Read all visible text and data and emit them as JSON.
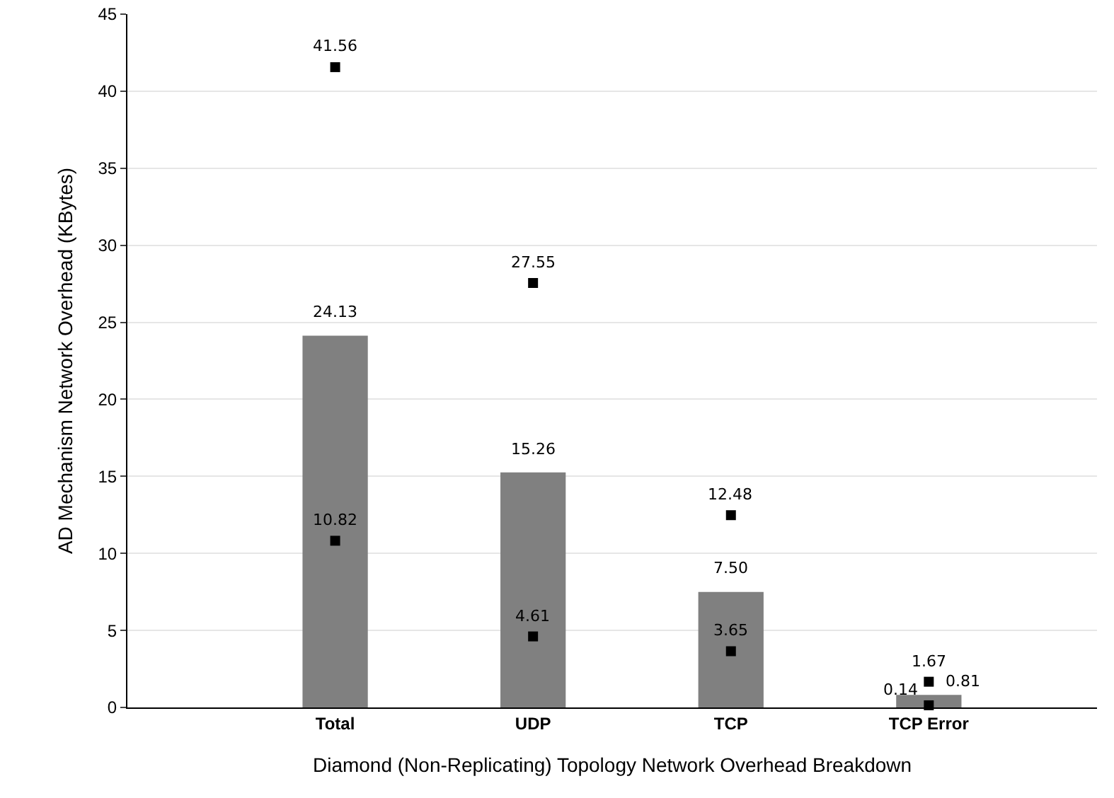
{
  "chart_data": {
    "type": "bar",
    "xlabel": "Diamond (Non-Replicating) Topology Network Overhead Breakdown",
    "ylabel": "AD Mechanism Network Overhead (KBytes)",
    "categories": [
      "Total",
      "UDP",
      "TCP",
      "TCP Error"
    ],
    "series": [
      {
        "type": "bar",
        "color": "#808080",
        "values": [
          24.13,
          15.26,
          7.5,
          0.81
        ],
        "value_labels": [
          "24.13",
          "15.26",
          "7.50",
          "0.81"
        ]
      },
      {
        "type": "scatter",
        "color": "#000000",
        "values": [
          41.56,
          27.55,
          12.48,
          1.67
        ],
        "value_labels": [
          "41.56",
          "27.55",
          "12.48",
          "1.67"
        ]
      },
      {
        "type": "scatter",
        "color": "#000000",
        "values": [
          10.82,
          4.61,
          3.65,
          0.14
        ],
        "value_labels": [
          "10.82",
          "4.61",
          "3.65",
          "0.14"
        ]
      }
    ],
    "ylim": [
      0,
      45
    ],
    "yticks": [
      0,
      5,
      10,
      15,
      20,
      25,
      30,
      35,
      40,
      45
    ],
    "grid": "y",
    "legend": false,
    "marker": "square"
  }
}
